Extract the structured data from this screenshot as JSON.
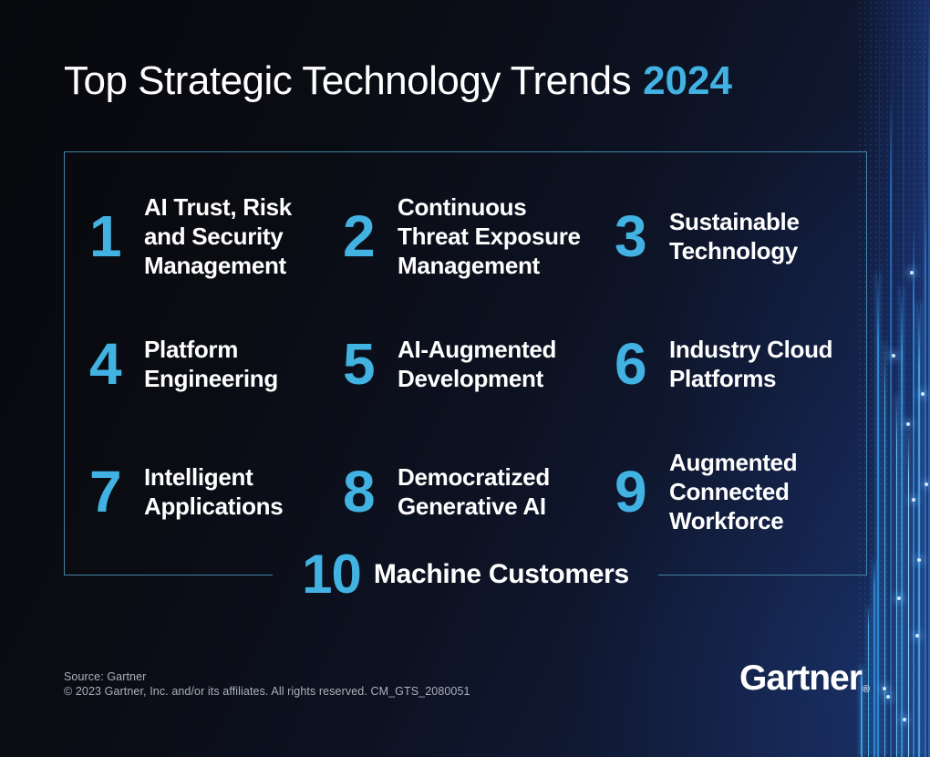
{
  "colors": {
    "accent": "#41b2e2",
    "panel_border": "#4283a6"
  },
  "title": {
    "text": "Top Strategic Technology Trends",
    "year": "2024"
  },
  "trends": [
    {
      "number": "1",
      "label": "AI Trust, Risk\nand Security\nManagement"
    },
    {
      "number": "2",
      "label": "Continuous\nThreat Exposure\nManagement"
    },
    {
      "number": "3",
      "label": "Sustainable\nTechnology"
    },
    {
      "number": "4",
      "label": "Platform\nEngineering"
    },
    {
      "number": "5",
      "label": "AI-Augmented\nDevelopment"
    },
    {
      "number": "6",
      "label": "Industry Cloud\nPlatforms"
    },
    {
      "number": "7",
      "label": "Intelligent\nApplications"
    },
    {
      "number": "8",
      "label": "Democratized\nGenerative AI"
    },
    {
      "number": "9",
      "label": "Augmented\nConnected\nWorkforce"
    },
    {
      "number": "10",
      "label": "Machine Customers"
    }
  ],
  "footer": {
    "source": "Source: Gartner",
    "copyright": "© 2023 Gartner, Inc. and/or its affiliates. All rights reserved. CM_GTS_2080051",
    "logo": "Gartner",
    "registered_mark": "®"
  }
}
